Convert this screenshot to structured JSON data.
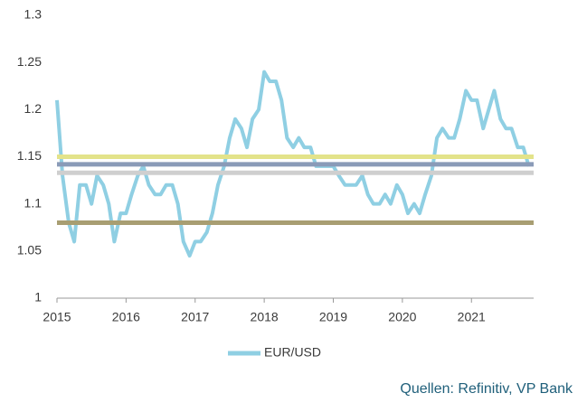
{
  "chart_data": {
    "type": "line",
    "x": [
      2015,
      2015.08,
      2015.17,
      2015.25,
      2015.33,
      2015.42,
      2015.5,
      2015.58,
      2015.67,
      2015.75,
      2015.83,
      2015.92,
      2016,
      2016.08,
      2016.17,
      2016.25,
      2016.33,
      2016.42,
      2016.5,
      2016.58,
      2016.67,
      2016.75,
      2016.83,
      2016.92,
      2017,
      2017.08,
      2017.17,
      2017.25,
      2017.33,
      2017.42,
      2017.5,
      2017.58,
      2017.67,
      2017.75,
      2017.83,
      2017.92,
      2018,
      2018.08,
      2018.17,
      2018.25,
      2018.33,
      2018.42,
      2018.5,
      2018.58,
      2018.67,
      2018.75,
      2018.83,
      2018.92,
      2019,
      2019.08,
      2019.17,
      2019.25,
      2019.33,
      2019.42,
      2019.5,
      2019.58,
      2019.67,
      2019.75,
      2019.83,
      2019.92,
      2020,
      2020.08,
      2020.17,
      2020.25,
      2020.33,
      2020.42,
      2020.5,
      2020.58,
      2020.67,
      2020.75,
      2020.83,
      2020.92,
      2021,
      2021.08,
      2021.17,
      2021.25,
      2021.33,
      2021.42,
      2021.5,
      2021.58,
      2021.67,
      2021.75,
      2021.83
    ],
    "series": [
      {
        "name": "EUR/USD",
        "color": "#8fcfe3",
        "values": [
          1.21,
          1.13,
          1.08,
          1.06,
          1.12,
          1.12,
          1.1,
          1.13,
          1.12,
          1.1,
          1.06,
          1.09,
          1.09,
          1.11,
          1.13,
          1.14,
          1.12,
          1.11,
          1.11,
          1.12,
          1.12,
          1.1,
          1.06,
          1.045,
          1.06,
          1.06,
          1.07,
          1.09,
          1.12,
          1.14,
          1.17,
          1.19,
          1.18,
          1.16,
          1.19,
          1.2,
          1.24,
          1.23,
          1.23,
          1.21,
          1.17,
          1.16,
          1.17,
          1.16,
          1.16,
          1.14,
          1.14,
          1.14,
          1.14,
          1.13,
          1.12,
          1.12,
          1.12,
          1.13,
          1.11,
          1.1,
          1.1,
          1.11,
          1.1,
          1.12,
          1.11,
          1.09,
          1.1,
          1.09,
          1.11,
          1.13,
          1.17,
          1.18,
          1.17,
          1.17,
          1.19,
          1.22,
          1.21,
          1.21,
          1.18,
          1.2,
          1.22,
          1.19,
          1.18,
          1.18,
          1.16,
          1.16,
          1.14
        ]
      }
    ],
    "reference_lines": [
      {
        "value": 1.15,
        "color": "#e3e38a"
      },
      {
        "value": 1.142,
        "color": "#8a9bb8"
      },
      {
        "value": 1.133,
        "color": "#cfcfcf"
      },
      {
        "value": 1.08,
        "color": "#a89e72"
      }
    ],
    "xlim": [
      2015,
      2021.9
    ],
    "xticks": [
      2015,
      2016,
      2017,
      2018,
      2019,
      2020,
      2021
    ],
    "ylim": [
      1,
      1.3
    ],
    "yticks": [
      1,
      1.05,
      1.1,
      1.15,
      1.2,
      1.25,
      1.3
    ],
    "grid": false,
    "legend": "bottom",
    "source": "Quellen: Refinitiv, VP Bank"
  }
}
